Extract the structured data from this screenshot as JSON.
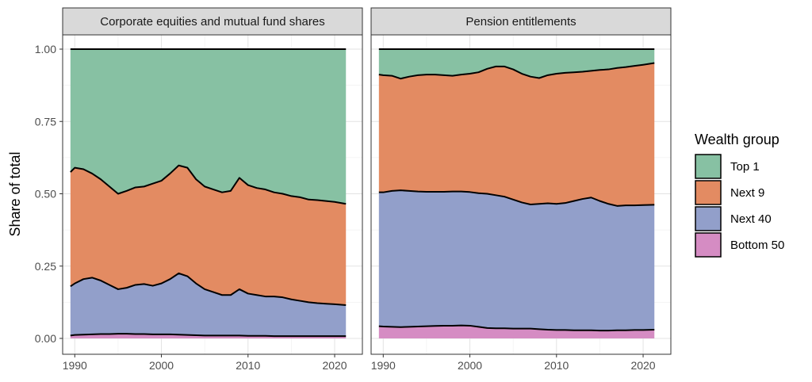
{
  "chart_data": {
    "type": "area",
    "stacked": true,
    "ylabel": "Share of total",
    "xlabel": "",
    "ylim": [
      0,
      1
    ],
    "xlim": [
      1988.6,
      1990.0
    ],
    "y_ticks": [
      0.0,
      0.25,
      0.5,
      0.75,
      1.0
    ],
    "y_tick_labels": [
      "0.00",
      "0.25",
      "0.50",
      "0.75",
      "1.00"
    ],
    "x_ticks": [
      1990,
      2000,
      2010,
      2020
    ],
    "x_tick_labels": [
      "1990",
      "2000",
      "2010",
      "2020"
    ],
    "grid": true,
    "legend": {
      "title": "Wealth group",
      "placement": "right",
      "entries": [
        "Top 1",
        "Next 9",
        "Next 40",
        "Bottom 50"
      ],
      "colors": {
        "Top 1": "#87c1a3",
        "Next 9": "#e38b62",
        "Next 40": "#929fca",
        "Bottom 50": "#d58cc3"
      }
    },
    "series_order_bottom_to_top": [
      "Bottom 50",
      "Next 40",
      "Next 9",
      "Top 1"
    ],
    "panels": [
      {
        "title": "Corporate equities and mutual fund shares",
        "x": [
          1989.5,
          1990,
          1991,
          1992,
          1993,
          1994,
          1995,
          1996,
          1997,
          1998,
          1999,
          2000,
          2001,
          2002,
          2003,
          2004,
          2005,
          2006,
          2007,
          2008,
          2009,
          2010,
          2011,
          2012,
          2013,
          2014,
          2015,
          2016,
          2017,
          2018,
          2019,
          2020,
          2021.3
        ],
        "cumulative_upper_boundaries": {
          "Bottom 50": [
            0.01,
            0.012,
            0.013,
            0.014,
            0.015,
            0.015,
            0.016,
            0.016,
            0.015,
            0.015,
            0.014,
            0.014,
            0.014,
            0.013,
            0.012,
            0.011,
            0.01,
            0.01,
            0.01,
            0.01,
            0.01,
            0.009,
            0.009,
            0.009,
            0.008,
            0.008,
            0.008,
            0.008,
            0.008,
            0.008,
            0.008,
            0.008,
            0.008
          ],
          "Next 40": [
            0.18,
            0.19,
            0.205,
            0.21,
            0.2,
            0.185,
            0.17,
            0.175,
            0.185,
            0.188,
            0.182,
            0.19,
            0.205,
            0.225,
            0.215,
            0.19,
            0.17,
            0.16,
            0.15,
            0.15,
            0.17,
            0.155,
            0.15,
            0.145,
            0.145,
            0.142,
            0.135,
            0.13,
            0.125,
            0.122,
            0.12,
            0.118,
            0.115
          ],
          "Next 9": [
            0.575,
            0.59,
            0.585,
            0.57,
            0.55,
            0.525,
            0.5,
            0.51,
            0.522,
            0.525,
            0.535,
            0.545,
            0.57,
            0.598,
            0.59,
            0.55,
            0.525,
            0.515,
            0.505,
            0.51,
            0.555,
            0.53,
            0.52,
            0.515,
            0.505,
            0.5,
            0.492,
            0.488,
            0.48,
            0.478,
            0.475,
            0.472,
            0.465
          ],
          "Top 1": [
            1.0,
            1.0,
            1.0,
            1.0,
            1.0,
            1.0,
            1.0,
            1.0,
            1.0,
            1.0,
            1.0,
            1.0,
            1.0,
            1.0,
            1.0,
            1.0,
            1.0,
            1.0,
            1.0,
            1.0,
            1.0,
            1.0,
            1.0,
            1.0,
            1.0,
            1.0,
            1.0,
            1.0,
            1.0,
            1.0,
            1.0,
            1.0,
            1.0
          ]
        }
      },
      {
        "title": "Pension entitlements",
        "x": [
          1989.5,
          1990,
          1991,
          1992,
          1993,
          1994,
          1995,
          1996,
          1997,
          1998,
          1999,
          2000,
          2001,
          2002,
          2003,
          2004,
          2005,
          2006,
          2007,
          2008,
          2009,
          2010,
          2011,
          2012,
          2013,
          2014,
          2015,
          2016,
          2017,
          2018,
          2019,
          2020,
          2021.3
        ],
        "cumulative_upper_boundaries": {
          "Bottom 50": [
            0.042,
            0.041,
            0.04,
            0.039,
            0.04,
            0.041,
            0.042,
            0.043,
            0.044,
            0.044,
            0.045,
            0.044,
            0.04,
            0.036,
            0.035,
            0.035,
            0.034,
            0.034,
            0.034,
            0.032,
            0.03,
            0.029,
            0.029,
            0.028,
            0.028,
            0.028,
            0.027,
            0.027,
            0.028,
            0.028,
            0.029,
            0.029,
            0.03
          ],
          "Next 40": [
            0.505,
            0.505,
            0.51,
            0.512,
            0.51,
            0.508,
            0.507,
            0.507,
            0.507,
            0.508,
            0.508,
            0.506,
            0.502,
            0.5,
            0.495,
            0.49,
            0.48,
            0.47,
            0.463,
            0.465,
            0.467,
            0.465,
            0.468,
            0.475,
            0.482,
            0.487,
            0.475,
            0.465,
            0.458,
            0.46,
            0.46,
            0.461,
            0.462
          ],
          "Next 9": [
            0.912,
            0.91,
            0.908,
            0.898,
            0.905,
            0.91,
            0.912,
            0.912,
            0.91,
            0.908,
            0.912,
            0.915,
            0.92,
            0.932,
            0.94,
            0.94,
            0.93,
            0.915,
            0.905,
            0.9,
            0.91,
            0.915,
            0.918,
            0.92,
            0.922,
            0.925,
            0.928,
            0.93,
            0.935,
            0.938,
            0.942,
            0.946,
            0.952
          ],
          "Top 1": [
            1.0,
            1.0,
            1.0,
            1.0,
            1.0,
            1.0,
            1.0,
            1.0,
            1.0,
            1.0,
            1.0,
            1.0,
            1.0,
            1.0,
            1.0,
            1.0,
            1.0,
            1.0,
            1.0,
            1.0,
            1.0,
            1.0,
            1.0,
            1.0,
            1.0,
            1.0,
            1.0,
            1.0,
            1.0,
            1.0,
            1.0,
            1.0,
            1.0
          ]
        }
      }
    ]
  }
}
